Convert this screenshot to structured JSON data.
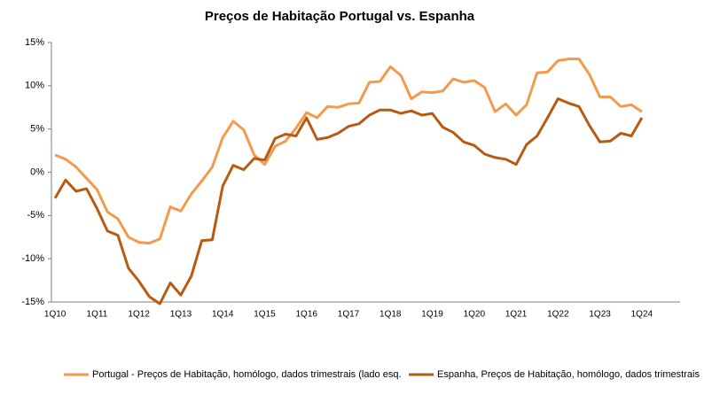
{
  "chart_data": {
    "type": "line",
    "title": "Preços de Habitação Portugal vs. Espanha",
    "categories": [
      "1Q10",
      null,
      null,
      null,
      "1Q11",
      null,
      null,
      null,
      "1Q12",
      null,
      null,
      null,
      "1Q13",
      null,
      null,
      null,
      "1Q14",
      null,
      null,
      null,
      "1Q15",
      null,
      null,
      null,
      "1Q16",
      null,
      null,
      null,
      "1Q17",
      null,
      null,
      null,
      "1Q18",
      null,
      null,
      null,
      "1Q19",
      null,
      null,
      null,
      "1Q20",
      null,
      null,
      null,
      "1Q21",
      null,
      null,
      null,
      "1Q22",
      null,
      null,
      null,
      "1Q23",
      null,
      null,
      null,
      "1Q24",
      null,
      null,
      null
    ],
    "series": [
      {
        "name": "Portugal - Preços de Habitação, homólogo, dados trimestrais (lado esq.",
        "color": "#f39a4b",
        "values": [
          2.0,
          1.5,
          0.6,
          -0.7,
          -2.0,
          -4.6,
          -5.4,
          -7.5,
          -8.1,
          -8.2,
          -7.7,
          -4.0,
          -4.5,
          -2.5,
          -1.0,
          0.6,
          4.0,
          5.9,
          4.9,
          2.0,
          0.9,
          3.0,
          3.6,
          5.1,
          6.9,
          6.3,
          7.6,
          7.5,
          7.9,
          8.0,
          10.4,
          10.5,
          12.2,
          11.2,
          8.5,
          9.3,
          9.2,
          9.4,
          10.8,
          10.4,
          10.6,
          9.8,
          7.0,
          7.9,
          6.6,
          7.8,
          11.5,
          11.6,
          12.9,
          13.1,
          13.1,
          11.3,
          8.7,
          8.7,
          7.6,
          7.8,
          7.0,
          null,
          null,
          null
        ]
      },
      {
        "name": "Espanha, Preços de Habitação, homólogo, dados trimestrais",
        "color": "#b95a12",
        "values": [
          -3.0,
          -0.9,
          -2.2,
          -1.9,
          -4.2,
          -6.8,
          -7.3,
          -11.1,
          -12.6,
          -14.4,
          -15.2,
          -12.8,
          -14.2,
          -12.0,
          -7.9,
          -7.8,
          -1.6,
          0.8,
          0.3,
          1.6,
          1.4,
          3.9,
          4.4,
          4.2,
          6.3,
          3.8,
          4.0,
          4.5,
          5.3,
          5.6,
          6.6,
          7.2,
          7.2,
          6.8,
          7.1,
          6.6,
          6.8,
          5.2,
          4.6,
          3.5,
          3.1,
          2.1,
          1.7,
          1.5,
          0.9,
          3.2,
          4.2,
          6.3,
          8.5,
          8.0,
          7.6,
          5.4,
          3.5,
          3.6,
          4.5,
          4.2,
          6.3,
          null,
          null,
          null
        ]
      }
    ],
    "ylim": [
      -15,
      15
    ],
    "yticks": [
      {
        "value": -15,
        "label": "-15%"
      },
      {
        "value": -10,
        "label": "-10%"
      },
      {
        "value": -5,
        "label": "-5%"
      },
      {
        "value": 0,
        "label": "0%"
      },
      {
        "value": 5,
        "label": "5%"
      },
      {
        "value": 10,
        "label": "10%"
      },
      {
        "value": 15,
        "label": "15%"
      }
    ]
  }
}
